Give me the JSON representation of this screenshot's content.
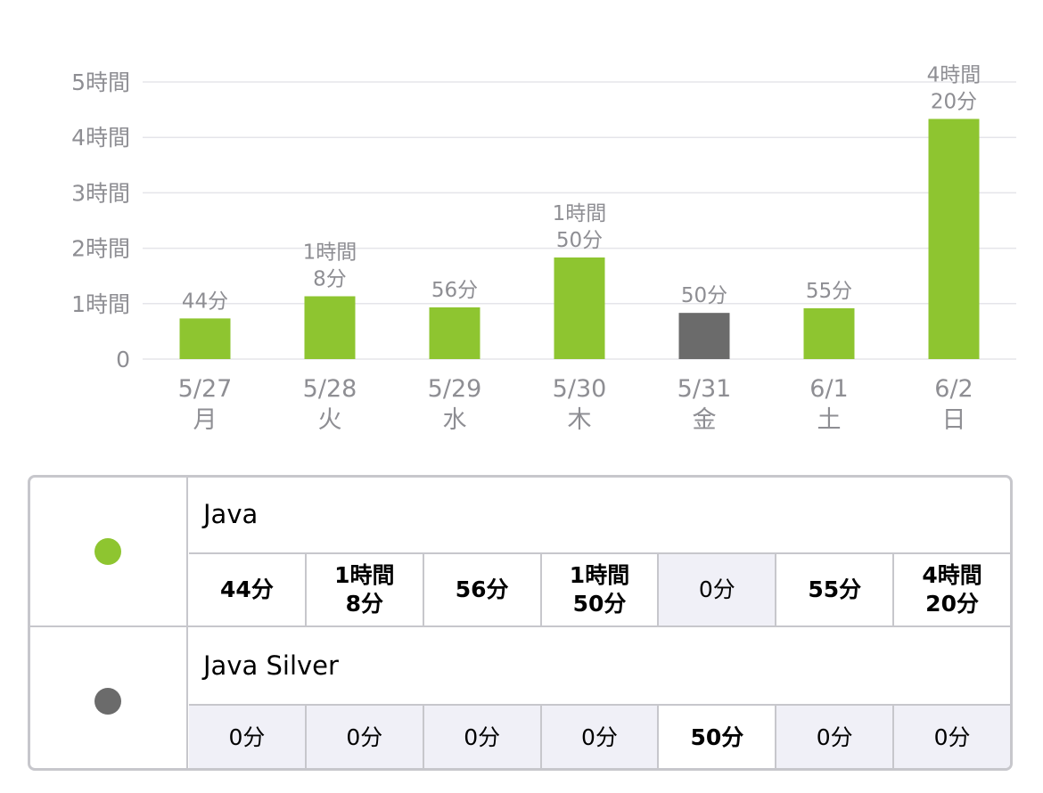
{
  "chart_data": {
    "type": "bar",
    "categories": [
      "5/27",
      "5/28",
      "5/29",
      "5/30",
      "5/31",
      "6/1",
      "6/2"
    ],
    "weekdays": [
      "月",
      "火",
      "水",
      "木",
      "金",
      "土",
      "日"
    ],
    "values_minutes": [
      44,
      68,
      56,
      110,
      50,
      55,
      260
    ],
    "bar_series": [
      "Java",
      "Java",
      "Java",
      "Java",
      "Java Silver",
      "Java",
      "Java"
    ],
    "data_labels": [
      [
        "44分"
      ],
      [
        "1時間",
        "8分"
      ],
      [
        "56分"
      ],
      [
        "1時間",
        "50分"
      ],
      [
        "50分"
      ],
      [
        "55分"
      ],
      [
        "4時間",
        "20分"
      ]
    ],
    "y_ticks": [
      "0",
      "1時間",
      "2時間",
      "3時間",
      "4時間",
      "5時間"
    ],
    "ylim_hours": [
      0,
      5
    ],
    "grid": true,
    "colors": {
      "Java": "#8ec530",
      "Java Silver": "#6b6b6b"
    }
  },
  "table": {
    "rows": [
      {
        "name": "Java",
        "color": "#8ec530",
        "cells": [
          {
            "text": "44分",
            "bold": true
          },
          {
            "text": "1時間\n8分",
            "bold": true
          },
          {
            "text": "56分",
            "bold": true
          },
          {
            "text": "1時間\n50分",
            "bold": true
          },
          {
            "text": "0分",
            "bold": false
          },
          {
            "text": "55分",
            "bold": true
          },
          {
            "text": "4時間\n20分",
            "bold": true
          }
        ]
      },
      {
        "name": "Java Silver",
        "color": "#6b6b6b",
        "cells": [
          {
            "text": "0分",
            "bold": false
          },
          {
            "text": "0分",
            "bold": false
          },
          {
            "text": "0分",
            "bold": false
          },
          {
            "text": "0分",
            "bold": false
          },
          {
            "text": "50分",
            "bold": true
          },
          {
            "text": "0分",
            "bold": false
          },
          {
            "text": "0分",
            "bold": false
          }
        ]
      }
    ]
  }
}
